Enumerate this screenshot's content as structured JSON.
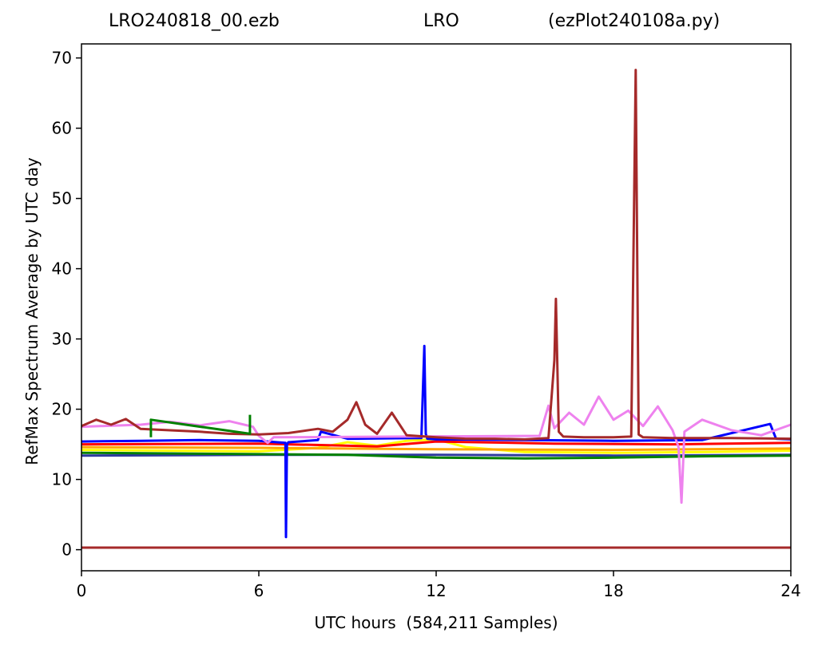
{
  "chart_data": {
    "type": "line",
    "title_parts": [
      "LRO240818_00.ezb",
      "LRO",
      "(ezPlot240108a.py)"
    ],
    "xlabel": "UTC hours  (584,211 Samples)",
    "ylabel": "RefMax Spectrum Average by UTC day",
    "xlim": [
      0,
      24
    ],
    "ylim": [
      -3,
      72
    ],
    "xticks": [
      0,
      6,
      12,
      18,
      24
    ],
    "yticks": [
      0,
      10,
      20,
      30,
      40,
      50,
      60,
      70
    ],
    "grid": false,
    "legend": "none",
    "series": [
      {
        "color": "#a52a2a",
        "x": [
          0,
          24
        ],
        "y": [
          0.3,
          0.3
        ]
      },
      {
        "color": "#2e3a9e",
        "x": [
          0,
          6,
          12,
          18,
          24
        ],
        "y": [
          13.4,
          13.5,
          13.5,
          13.4,
          13.5
        ]
      },
      {
        "color": "#008000",
        "x": [
          0,
          3,
          6,
          9,
          12,
          15,
          18,
          21,
          24
        ],
        "y": [
          13.8,
          13.7,
          13.6,
          13.5,
          13.1,
          13.0,
          13.1,
          13.3,
          13.4
        ]
      },
      {
        "color": "#ffff00",
        "x": [
          0,
          6,
          8,
          9,
          10,
          11,
          12,
          13,
          15,
          18,
          21,
          24
        ],
        "y": [
          14.2,
          14.0,
          14.5,
          15.3,
          14.8,
          15.5,
          15.7,
          14.6,
          13.9,
          13.8,
          13.9,
          14.1
        ]
      },
      {
        "color": "#ffa500",
        "x": [
          0,
          6,
          12,
          18,
          24
        ],
        "y": [
          14.6,
          14.5,
          14.3,
          14.2,
          14.4
        ]
      },
      {
        "color": "#ff0000",
        "x": [
          0,
          6,
          10,
          12,
          16,
          20,
          24
        ],
        "y": [
          15.0,
          15.1,
          14.7,
          15.4,
          15.1,
          15.0,
          15.2
        ]
      },
      {
        "color": "#0000ff",
        "x": [
          0,
          2,
          4,
          6,
          6.9,
          6.92,
          6.95,
          7.0,
          8,
          8.1,
          9,
          11.5,
          11.6,
          11.65,
          11.7,
          12,
          15,
          18,
          21,
          23.3,
          23.5,
          24
        ],
        "y": [
          15.4,
          15.5,
          15.6,
          15.5,
          15.2,
          1.8,
          15.0,
          15.3,
          15.6,
          16.8,
          15.8,
          15.9,
          29.0,
          16.5,
          15.8,
          15.7,
          15.6,
          15.5,
          15.6,
          17.9,
          15.8,
          15.7
        ]
      },
      {
        "color": "#ee82ee",
        "x": [
          0,
          2,
          3,
          4,
          5,
          5.8,
          6,
          6.3,
          6.5,
          15.5,
          15.8,
          16,
          16.5,
          17,
          17.5,
          18,
          18.5,
          19,
          19.5,
          20,
          20.2,
          20.3,
          20.4,
          21,
          22,
          23,
          24
        ],
        "y": [
          17.5,
          17.8,
          18.2,
          17.7,
          18.3,
          17.5,
          16.2,
          15.2,
          16.0,
          16.2,
          20.5,
          17.3,
          19.5,
          17.8,
          21.8,
          18.5,
          19.8,
          17.6,
          20.4,
          17.0,
          14.6,
          6.7,
          16.8,
          18.5,
          17.0,
          16.3,
          17.8
        ]
      },
      {
        "color": "#a52a2a",
        "x": [
          0,
          0.5,
          1,
          1.5,
          2,
          3,
          4,
          5,
          6,
          7,
          8,
          8.5,
          9,
          9.3,
          9.6,
          10,
          10.5,
          11,
          12,
          13,
          14,
          15,
          15.8,
          16.0,
          16.05,
          16.15,
          16.3,
          17,
          18,
          18.6,
          18.75,
          18.85,
          19,
          20,
          22,
          24
        ],
        "y": [
          17.6,
          18.5,
          17.8,
          18.6,
          17.2,
          17.0,
          16.8,
          16.5,
          16.4,
          16.6,
          17.2,
          16.8,
          18.5,
          21.0,
          17.8,
          16.5,
          19.5,
          16.3,
          16.0,
          15.8,
          15.8,
          15.7,
          15.9,
          27.0,
          35.7,
          16.8,
          16.1,
          16.0,
          16.0,
          16.1,
          68.3,
          16.4,
          16.0,
          15.9,
          15.9,
          15.8
        ]
      },
      {
        "color": "#008000",
        "x": [
          2.35,
          2.35,
          5.7,
          5.7
        ],
        "y": [
          16.0,
          18.5,
          16.5,
          19.2
        ]
      }
    ]
  }
}
